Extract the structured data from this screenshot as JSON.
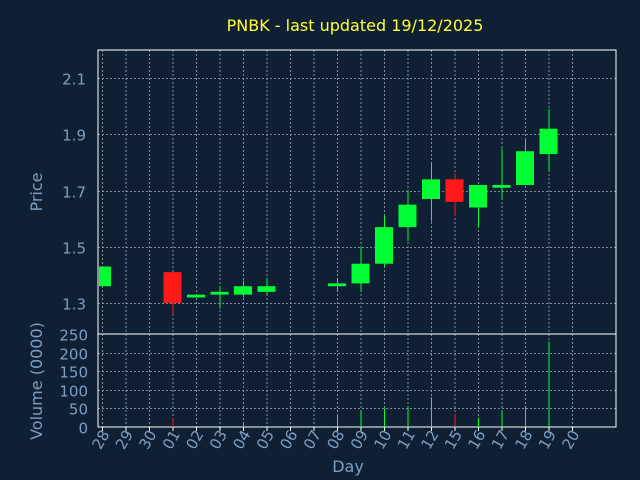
{
  "chart_data": {
    "type": "candlestick",
    "title": "PNBK - last updated 19/12/2025",
    "xlabel": "Day",
    "x_ticks": [
      "28",
      "29",
      "30",
      "01",
      "02",
      "03",
      "04",
      "05",
      "06",
      "07",
      "08",
      "09",
      "10",
      "11",
      "12",
      "15",
      "16",
      "17",
      "18",
      "19",
      "20"
    ],
    "price_panel": {
      "ylabel": "Price",
      "ylim": [
        1.19,
        2.2
      ],
      "y_ticks": [
        "1.3",
        "1.5",
        "1.7",
        "1.9",
        "2.1"
      ],
      "candles": [
        {
          "day": "28",
          "open": 1.36,
          "high": 1.43,
          "low": 1.36,
          "close": 1.43
        },
        {
          "day": "01",
          "open": 1.41,
          "high": 1.41,
          "low": 1.26,
          "close": 1.3
        },
        {
          "day": "02",
          "open": 1.32,
          "high": 1.33,
          "low": 1.32,
          "close": 1.33
        },
        {
          "day": "03",
          "open": 1.33,
          "high": 1.36,
          "low": 1.28,
          "close": 1.34
        },
        {
          "day": "04",
          "open": 1.33,
          "high": 1.38,
          "low": 1.32,
          "close": 1.36
        },
        {
          "day": "05",
          "open": 1.34,
          "high": 1.39,
          "low": 1.33,
          "close": 1.36
        },
        {
          "day": "08",
          "open": 1.36,
          "high": 1.39,
          "low": 1.34,
          "close": 1.37
        },
        {
          "day": "09",
          "open": 1.37,
          "high": 1.5,
          "low": 1.34,
          "close": 1.44
        },
        {
          "day": "10",
          "open": 1.44,
          "high": 1.61,
          "low": 1.43,
          "close": 1.57
        },
        {
          "day": "11",
          "open": 1.57,
          "high": 1.7,
          "low": 1.52,
          "close": 1.65
        },
        {
          "day": "12",
          "open": 1.67,
          "high": 1.8,
          "low": 1.59,
          "close": 1.74
        },
        {
          "day": "15",
          "open": 1.74,
          "high": 1.76,
          "low": 1.61,
          "close": 1.66
        },
        {
          "day": "16",
          "open": 1.64,
          "high": 1.72,
          "low": 1.57,
          "close": 1.72
        },
        {
          "day": "17",
          "open": 1.71,
          "high": 1.85,
          "low": 1.67,
          "close": 1.72
        },
        {
          "day": "18",
          "open": 1.72,
          "high": 1.88,
          "low": 1.72,
          "close": 1.84
        },
        {
          "day": "19",
          "open": 1.83,
          "high": 1.99,
          "low": 1.77,
          "close": 1.92
        }
      ]
    },
    "volume_panel": {
      "ylabel": "Volume (0000)",
      "ylim": [
        0,
        250
      ],
      "y_ticks": [
        "0",
        "50",
        "100",
        "150",
        "200",
        "250"
      ],
      "bars": [
        {
          "day": "01",
          "value": 25,
          "color": "red"
        },
        {
          "day": "04",
          "value": 10,
          "color": "green"
        },
        {
          "day": "08",
          "value": 30,
          "color": "green"
        },
        {
          "day": "09",
          "value": 45,
          "color": "green"
        },
        {
          "day": "10",
          "value": 50,
          "color": "green"
        },
        {
          "day": "11",
          "value": 55,
          "color": "green"
        },
        {
          "day": "12",
          "value": 80,
          "color": "green"
        },
        {
          "day": "15",
          "value": 35,
          "color": "red"
        },
        {
          "day": "16",
          "value": 25,
          "color": "green"
        },
        {
          "day": "17",
          "value": 45,
          "color": "green"
        },
        {
          "day": "18",
          "value": 55,
          "color": "green"
        },
        {
          "day": "19",
          "value": 230,
          "color": "green"
        }
      ]
    },
    "colors": {
      "background": "#0f2034",
      "up": "#00ff33",
      "down": "#ff1a1a",
      "grid": "#9aaabb",
      "title": "#ffff33",
      "axis_text": "#7f9fc0"
    }
  }
}
